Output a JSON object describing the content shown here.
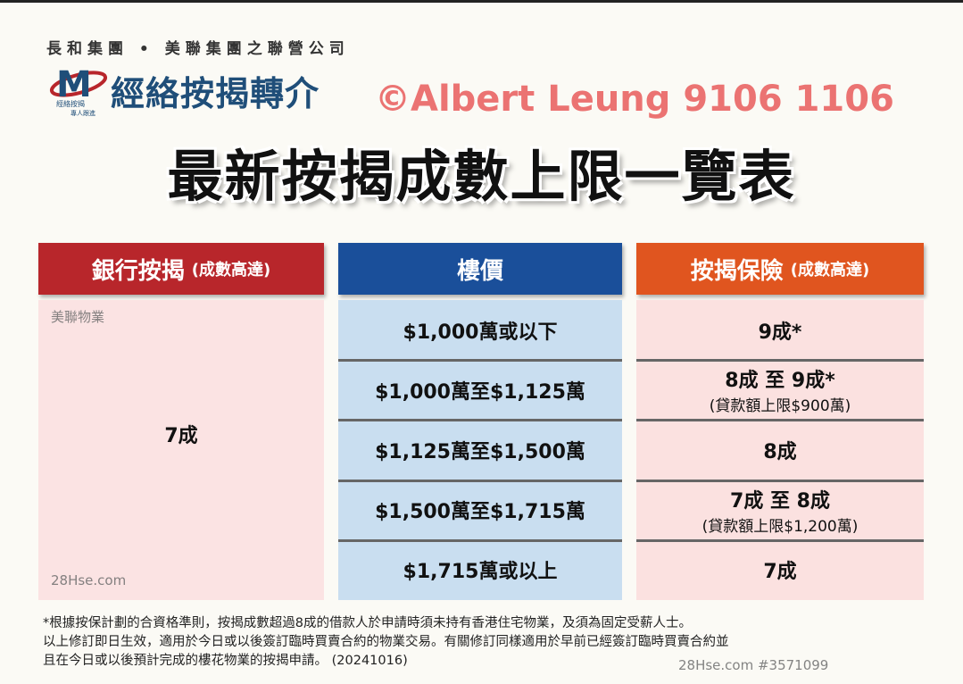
{
  "header": {
    "group": "長和集團 • 美聯集團之聯營公司",
    "brand": "經絡按揭轉介",
    "logo_sub1": "經絡按揭",
    "logo_sub2": "專人跟進"
  },
  "title": "最新按揭成數上限一覽表",
  "columns": [
    {
      "label": "銀行按揭",
      "note": "(成數高達)",
      "color": "#b8262b"
    },
    {
      "label": "樓價",
      "note": "",
      "color": "#1a4f9a"
    },
    {
      "label": "按揭保險",
      "note": "(成數高達)",
      "color": "#e0551f"
    }
  ],
  "bank_ratio": "7成",
  "rows": [
    {
      "price": "$1,000萬或以下",
      "insurance": "9成*",
      "insurance_note": ""
    },
    {
      "price": "$1,000萬至$1,125萬",
      "insurance": "8成 至 9成*",
      "insurance_note": "(貸款額上限$900萬)"
    },
    {
      "price": "$1,125萬至$1,500萬",
      "insurance": "8成",
      "insurance_note": ""
    },
    {
      "price": "$1,500萬至$1,715萬",
      "insurance": "7成 至 8成",
      "insurance_note": "(貸款額上限$1,200萬)"
    },
    {
      "price": "$1,715萬或以上",
      "insurance": "7成",
      "insurance_note": ""
    }
  ],
  "notes": [
    "*根據按保計劃的合資格準則，按揭成數超過8成的借款人於申請時須未持有香港住宅物業，及須為固定受薪人士。",
    "以上修訂即日生效，適用於今日或以後簽訂臨時買賣合約的物業交易。有關修訂同樣適用於早前已經簽訂臨時買賣合約並",
    "且在今日或以後預計完成的樓花物業的按揭申請。 (20241016)"
  ],
  "watermarks": {
    "main": "©Albert Leung 9106 1106",
    "site": "28Hse.com #3571099",
    "agency": "美聯物業",
    "site2": "28Hse.com"
  }
}
